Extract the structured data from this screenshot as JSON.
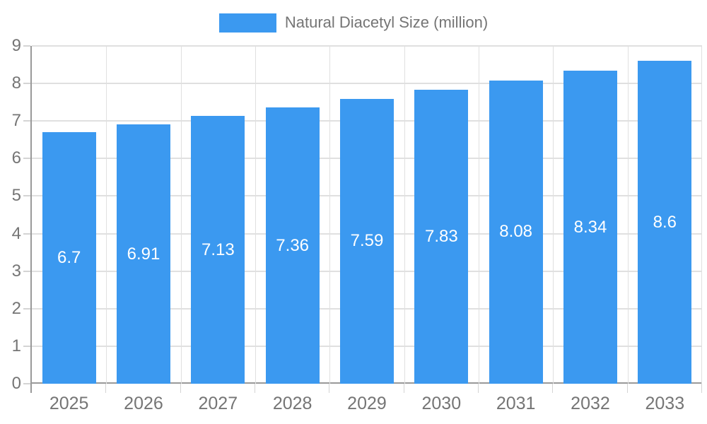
{
  "legend": {
    "label": "Natural Diacetyl Size (million)"
  },
  "colors": {
    "bar": "#3B99F0",
    "bar_label": "#FFFFFF",
    "grid": "#E0E0E0",
    "tick": "#D4D4D4",
    "axis": "#999999",
    "text": "#757575",
    "background": "#FFFFFF"
  },
  "chart_data": {
    "type": "bar",
    "title": "",
    "categories": [
      "2025",
      "2026",
      "2027",
      "2028",
      "2029",
      "2030",
      "2031",
      "2032",
      "2033"
    ],
    "series": [
      {
        "name": "Natural Diacetyl Size (million)",
        "values": [
          6.7,
          6.91,
          7.13,
          7.36,
          7.59,
          7.83,
          8.08,
          8.34,
          8.6
        ]
      }
    ],
    "value_labels": [
      "6.7",
      "6.91",
      "7.13",
      "7.36",
      "7.59",
      "7.83",
      "8.08",
      "8.34",
      "8.6"
    ],
    "xlabel": "",
    "ylabel": "",
    "ylim": [
      0,
      9
    ],
    "y_ticks": [
      0,
      1,
      2,
      3,
      4,
      5,
      6,
      7,
      8,
      9
    ],
    "grid": true,
    "legend_position": "top"
  }
}
